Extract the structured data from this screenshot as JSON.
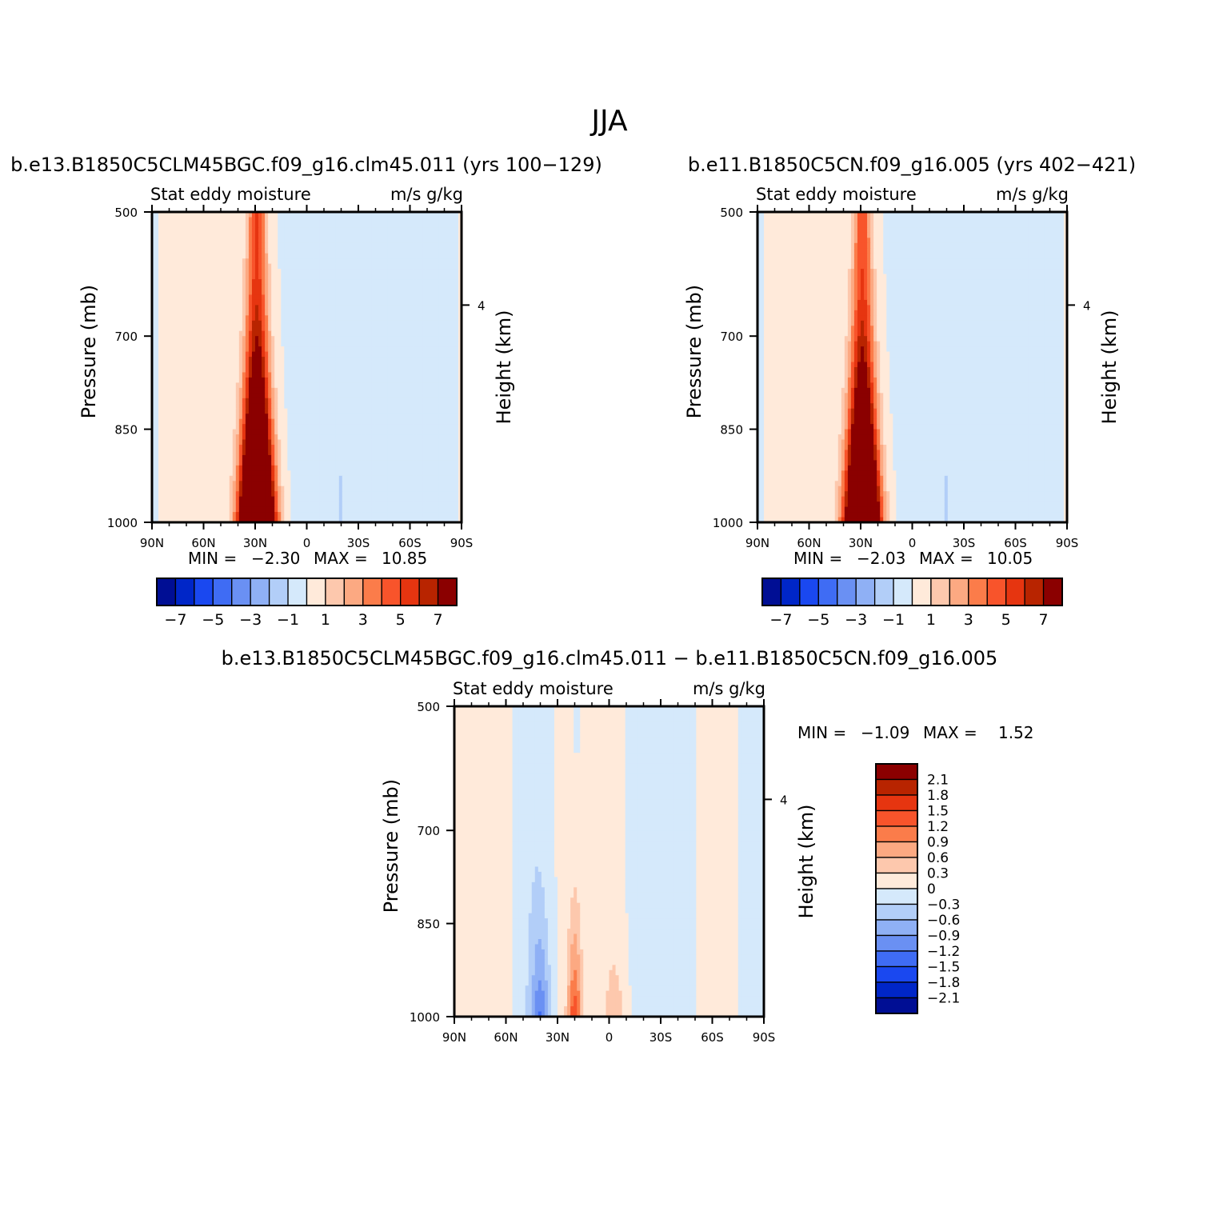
{
  "page_title": "JJA",
  "colors": {
    "positive": [
      "#ffeada",
      "#fdc8ad",
      "#fca982",
      "#fb7c4a",
      "#f8542b",
      "#e63510",
      "#b82400",
      "#8b0000"
    ],
    "negative": [
      "#d5e9fb",
      "#b2cef8",
      "#8fb0f5",
      "#6a90f3",
      "#3f6cf4",
      "#1a48f0",
      "#0026c8",
      "#000e94"
    ]
  },
  "chart_data": [
    {
      "id": "panel-a",
      "type": "heatmap",
      "title": "b.e13.B1850C5CLM45BGC.f09_g16.clm45.011 (yrs 100−129)",
      "subtitle_left": "Stat eddy moisture",
      "subtitle_right": "m/s g/kg",
      "ylabel": "Pressure (mb)",
      "ylabel_right": "Height (km)",
      "x_ticks": [
        "90N",
        "60N",
        "30N",
        "0",
        "30S",
        "60S",
        "90S"
      ],
      "x_range": [
        90,
        -90
      ],
      "y_ticks": [
        "500",
        "700",
        "850",
        "1000"
      ],
      "y_range": [
        500,
        1000
      ],
      "y_right_ticks": [
        "4"
      ],
      "min_label": "MIN =",
      "min_value": "−2.30",
      "max_label": "MAX =",
      "max_value": "10.85",
      "legend_labels": [
        "−7",
        "−5",
        "−3",
        "−1",
        "1",
        "3",
        "5",
        "7"
      ],
      "levels": [
        -7,
        -6,
        -5,
        -4,
        -3,
        -2,
        -1,
        0,
        1,
        2,
        3,
        4,
        5,
        6,
        7
      ],
      "jet_lat": 29,
      "jet_peak": 10.85
    },
    {
      "id": "panel-b",
      "type": "heatmap",
      "title": "b.e11.B1850C5CN.f09_g16.005 (yrs 402−421)",
      "subtitle_left": "Stat eddy moisture",
      "subtitle_right": "m/s g/kg",
      "ylabel": "Pressure (mb)",
      "ylabel_right": "Height (km)",
      "x_ticks": [
        "90N",
        "60N",
        "30N",
        "0",
        "30S",
        "60S",
        "90S"
      ],
      "x_range": [
        90,
        -90
      ],
      "y_ticks": [
        "500",
        "700",
        "850",
        "1000"
      ],
      "y_range": [
        500,
        1000
      ],
      "y_right_ticks": [
        "4"
      ],
      "min_label": "MIN =",
      "min_value": "−2.03",
      "max_label": "MAX =",
      "max_value": "10.05",
      "legend_labels": [
        "−7",
        "−5",
        "−3",
        "−1",
        "1",
        "3",
        "5",
        "7"
      ],
      "levels": [
        -7,
        -6,
        -5,
        -4,
        -3,
        -2,
        -1,
        0,
        1,
        2,
        3,
        4,
        5,
        6,
        7
      ],
      "jet_lat": 29,
      "jet_peak": 10.05
    },
    {
      "id": "panel-c",
      "type": "heatmap",
      "title": "b.e13.B1850C5CLM45BGC.f09_g16.clm45.011 − b.e11.B1850C5CN.f09_g16.005",
      "subtitle_left": "Stat eddy moisture",
      "subtitle_right": "m/s g/kg",
      "ylabel": "Pressure (mb)",
      "ylabel_right": "Height (km)",
      "x_ticks": [
        "90N",
        "60N",
        "30N",
        "0",
        "30S",
        "60S",
        "90S"
      ],
      "x_range": [
        90,
        -90
      ],
      "y_ticks": [
        "500",
        "700",
        "850",
        "1000"
      ],
      "y_range": [
        500,
        1000
      ],
      "y_right_ticks": [
        "4"
      ],
      "min_label": "MIN =",
      "min_value": "−1.09",
      "max_label": "MAX =",
      "max_value": "1.52",
      "legend_labels": [
        "2.1",
        "1.8",
        "1.5",
        "1.2",
        "0.9",
        "0.6",
        "0.3",
        "0",
        "−0.3",
        "−0.6",
        "−0.9",
        "−1.2",
        "−1.5",
        "−1.8",
        "−2.1"
      ],
      "levels": [
        -2.1,
        -1.8,
        -1.5,
        -1.2,
        -0.9,
        -0.6,
        -0.3,
        0,
        0.3,
        0.6,
        0.9,
        1.2,
        1.5,
        1.8,
        2.1
      ]
    }
  ]
}
